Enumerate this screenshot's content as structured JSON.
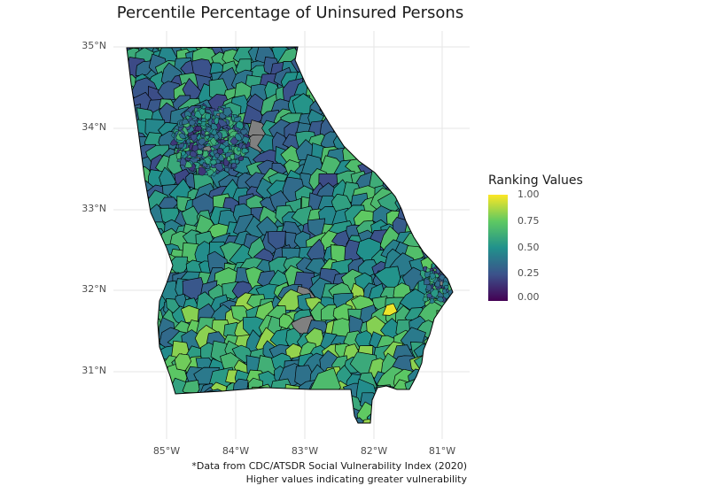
{
  "title": "Percentile Percentage of Uninsured Persons",
  "y_ticks": [
    "35°N",
    "34°N",
    "33°N",
    "32°N",
    "31°N"
  ],
  "x_ticks": [
    "85°W",
    "84°W",
    "83°W",
    "82°W",
    "81°W"
  ],
  "legend": {
    "title": "Ranking Values",
    "labels": [
      "1.00",
      "0.75",
      "0.50",
      "0.25",
      "0.00"
    ],
    "colors": [
      "#fde725",
      "#5ec962",
      "#21918c",
      "#3b528b",
      "#440154"
    ]
  },
  "caption": {
    "line1": "*Data from CDC/ATSDR Social Vulnerability Index (2020)",
    "line2": "Higher values indicating greater vulnerability"
  },
  "map": {
    "region": "Georgia",
    "missing_color": "#808080",
    "boundary_color": "#000000"
  }
}
